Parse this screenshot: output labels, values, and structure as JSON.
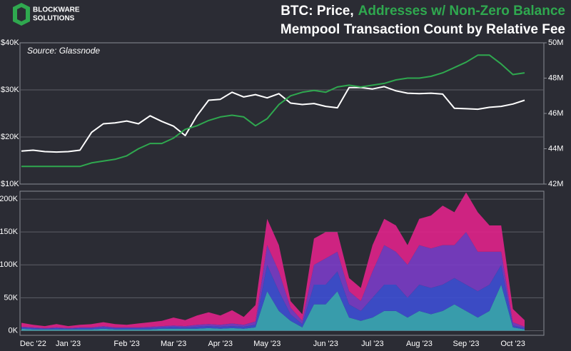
{
  "logo": [
    "BLOCKWARE",
    "SOLUTIONS"
  ],
  "source": "Source: Glassnode",
  "chart_data": [
    {
      "type": "line",
      "title": "BTC: Price,",
      "title_highlight": "Addresses w/ Non-Zero Balance",
      "ylim": [
        10000,
        40000
      ],
      "yticks": [
        {
          "value": 10000,
          "label": "$10K"
        },
        {
          "value": 20000,
          "label": "$20K"
        },
        {
          "value": 30000,
          "label": "$30K"
        },
        {
          "value": 40000,
          "label": "$40K"
        }
      ],
      "y2lim": [
        42000000,
        50000000
      ],
      "y2ticks": [
        {
          "value": 42000000,
          "label": "42M"
        },
        {
          "value": 44000000,
          "label": "44M"
        },
        {
          "value": 46000000,
          "label": "46M"
        },
        {
          "value": 48000000,
          "label": "48M"
        },
        {
          "value": 50000000,
          "label": "50M"
        }
      ],
      "grid": true,
      "series": [
        {
          "color": "#ffffff",
          "axis": "y",
          "values": [
            17000,
            17200,
            16900,
            16800,
            16900,
            17200,
            21000,
            22800,
            23000,
            23400,
            22800,
            24500,
            23300,
            22300,
            20300,
            24500,
            27800,
            28000,
            29500,
            28500,
            29000,
            28300,
            29200,
            27200,
            26900,
            27100,
            26500,
            26200,
            30500,
            30500,
            30200,
            30700,
            29800,
            29300,
            29200,
            29300,
            29100,
            26100,
            26000,
            25900,
            26300,
            26500,
            27000,
            27800
          ]
        },
        {
          "color": "#2fa84f",
          "axis": "y2",
          "values": [
            43000000,
            43000000,
            43000000,
            43000000,
            43000000,
            43000000,
            43200000,
            43300000,
            43400000,
            43600000,
            44000000,
            44300000,
            44300000,
            44600000,
            45100000,
            45300000,
            45600000,
            45800000,
            45900000,
            45800000,
            45300000,
            45700000,
            46500000,
            47000000,
            47200000,
            47300000,
            47200000,
            47500000,
            47600000,
            47500000,
            47600000,
            47700000,
            47900000,
            48000000,
            48000000,
            48100000,
            48300000,
            48600000,
            48900000,
            49300000,
            49300000,
            48800000,
            48200000,
            48300000
          ]
        }
      ]
    },
    {
      "type": "area",
      "subtitle": "Mempool Transaction Count by Relative Fee",
      "stacked": true,
      "ylim": [
        -7000,
        212000
      ],
      "yticks": [
        {
          "value": 0,
          "label": "0K"
        },
        {
          "value": 50000,
          "label": "50K"
        },
        {
          "value": 100000,
          "label": "100K"
        },
        {
          "value": 150000,
          "label": "150K"
        },
        {
          "value": 200000,
          "label": "200K"
        }
      ],
      "grid": true,
      "categories": [
        null,
        "Dec '22",
        null,
        null,
        "Jan '23",
        null,
        null,
        null,
        null,
        "Feb '23",
        null,
        null,
        null,
        "Mar '23",
        null,
        null,
        null,
        "Apr '23",
        null,
        null,
        null,
        "May '23",
        null,
        null,
        null,
        null,
        "Jun '23",
        null,
        null,
        null,
        "Jul '23",
        null,
        null,
        null,
        "Aug '23",
        null,
        null,
        null,
        "Sep '23",
        null,
        null,
        null,
        "Oct '23",
        null
      ],
      "series": [
        {
          "color": "#3aa9b8",
          "values": [
            3000,
            2000,
            2000,
            2000,
            2000,
            2000,
            2000,
            3000,
            2000,
            2000,
            2000,
            2000,
            3000,
            3000,
            3000,
            3000,
            4000,
            3000,
            4000,
            3000,
            5000,
            60000,
            30000,
            15000,
            5000,
            40000,
            40000,
            60000,
            20000,
            15000,
            20000,
            30000,
            30000,
            20000,
            30000,
            25000,
            30000,
            40000,
            30000,
            20000,
            30000,
            70000,
            5000,
            2000
          ]
        },
        {
          "color": "#3d4fd4",
          "values": [
            2000,
            2000,
            1000,
            2000,
            1000,
            2000,
            2000,
            2000,
            2000,
            2000,
            2000,
            2000,
            2000,
            3000,
            2000,
            3000,
            3000,
            3000,
            3000,
            3000,
            4000,
            40000,
            30000,
            10000,
            5000,
            30000,
            30000,
            30000,
            20000,
            15000,
            30000,
            40000,
            40000,
            30000,
            40000,
            40000,
            40000,
            40000,
            40000,
            40000,
            40000,
            30000,
            3000,
            2000
          ]
        },
        {
          "color": "#7a3cc6",
          "values": [
            1000,
            1000,
            1000,
            1000,
            1000,
            1000,
            1000,
            2000,
            1000,
            1000,
            1000,
            2000,
            2000,
            2000,
            2000,
            3000,
            3000,
            3000,
            4000,
            3000,
            5000,
            30000,
            30000,
            10000,
            5000,
            30000,
            40000,
            30000,
            20000,
            15000,
            40000,
            60000,
            50000,
            50000,
            60000,
            60000,
            60000,
            50000,
            80000,
            60000,
            50000,
            20000,
            5000,
            2000
          ]
        },
        {
          "color": "#e0228a",
          "values": [
            6000,
            4000,
            3000,
            5000,
            3000,
            4000,
            5000,
            6000,
            5000,
            4000,
            6000,
            7000,
            8000,
            12000,
            9000,
            14000,
            18000,
            14000,
            20000,
            12000,
            25000,
            40000,
            40000,
            10000,
            10000,
            40000,
            40000,
            30000,
            20000,
            20000,
            40000,
            40000,
            40000,
            30000,
            40000,
            50000,
            60000,
            50000,
            60000,
            60000,
            40000,
            40000,
            20000,
            10000
          ]
        }
      ]
    }
  ]
}
